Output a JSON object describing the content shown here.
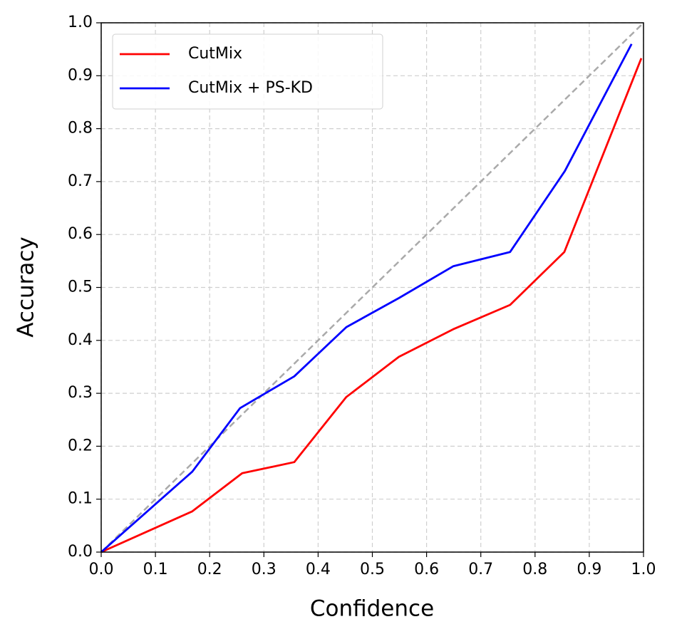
{
  "chart_data": {
    "type": "line",
    "xlabel": "Confidence",
    "ylabel": "Accuracy",
    "series": [
      {
        "name": "CutMix",
        "color": "#ff0000",
        "x": [
          0,
          0.168,
          0.26,
          0.356,
          0.452,
          0.549,
          0.649,
          0.754,
          0.854,
          0.996
        ],
        "values": [
          0,
          0.077,
          0.149,
          0.17,
          0.293,
          0.369,
          0.421,
          0.467,
          0.567,
          0.933
        ]
      },
      {
        "name": "CutMix + PS-KD",
        "color": "#0000ff",
        "x": [
          0,
          0.168,
          0.256,
          0.356,
          0.452,
          0.549,
          0.649,
          0.754,
          0.855,
          0.978
        ],
        "values": [
          0,
          0.152,
          0.272,
          0.332,
          0.425,
          0.48,
          0.54,
          0.567,
          0.72,
          0.96
        ]
      }
    ],
    "reference_line": {
      "x": [
        0,
        1
      ],
      "values": [
        0,
        1
      ],
      "color": "#aaaaaa",
      "dashed": true
    },
    "xlim": [
      0,
      1
    ],
    "ylim": [
      0,
      1
    ],
    "xticks": [
      {
        "value": 0,
        "label": "0.0"
      },
      0.1,
      0.2,
      0.3,
      0.4,
      0.5,
      0.6,
      0.7,
      0.8,
      0.9,
      {
        "value": 1,
        "label": "1.0"
      }
    ],
    "yticks": [
      {
        "value": 0,
        "label": "0.0"
      },
      0.1,
      0.2,
      0.3,
      0.4,
      0.5,
      0.6,
      0.7,
      0.8,
      0.9,
      {
        "value": 1,
        "label": "1.0"
      }
    ],
    "grid": true,
    "legend": "upper-left"
  }
}
